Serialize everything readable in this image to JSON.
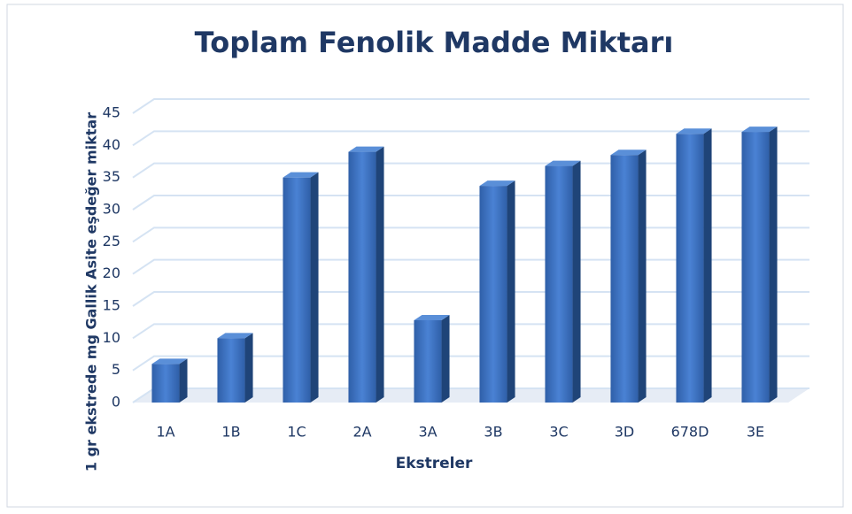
{
  "chart_data": {
    "type": "bar3d",
    "title": "Toplam Fenolik Madde Miktarı",
    "x_label": "Ekstreler",
    "y_label": "1 gr ekstrede mg Gallik Asite eşdeğer miktar",
    "categories": [
      "1A",
      "1B",
      "1C",
      "2A",
      "3A",
      "3B",
      "3C",
      "3D",
      "678D",
      "3E"
    ],
    "values": [
      6,
      10,
      35,
      39,
      12.8,
      33.7,
      36.8,
      38.5,
      41.8,
      42.1
    ],
    "color": "#3a70c0",
    "ylim": [
      0,
      45
    ],
    "yticks": [
      0,
      5,
      10,
      15,
      20,
      25,
      30,
      35,
      40,
      45
    ],
    "grid": true
  }
}
